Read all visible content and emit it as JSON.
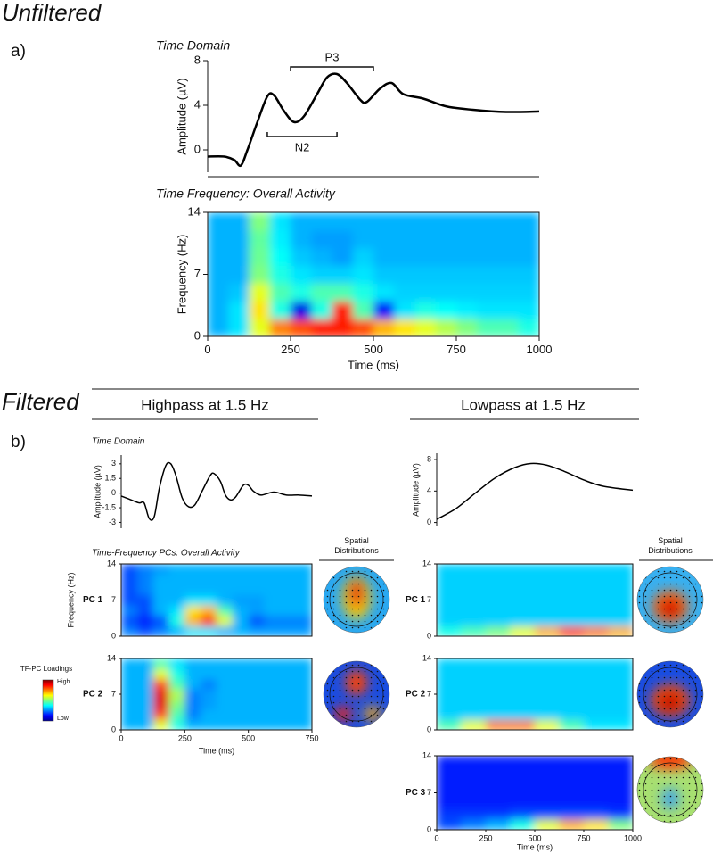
{
  "headings": {
    "unfiltered": "Unfiltered",
    "a": "a)",
    "filtered": "Filtered",
    "b": "b)",
    "highpass": "Highpass at 1.5 Hz",
    "lowpass": "Lowpass at 1.5 Hz"
  },
  "spatial_labels": [
    "Spatial Distributions",
    "Spatial Distributions"
  ],
  "colorbar": {
    "title": "TF-PC Loadings",
    "high": "High",
    "low": "Low"
  },
  "chart_data": [
    {
      "type": "line",
      "title": "Time Domain",
      "ylabel": "Amplitude (µV)",
      "color": "#000000",
      "x": [
        0,
        50,
        80,
        100,
        120,
        150,
        180,
        200,
        230,
        260,
        290,
        330,
        360,
        390,
        420,
        460,
        480,
        520,
        555,
        590,
        650,
        720,
        800,
        900,
        1000
      ],
      "values": [
        -0.6,
        -0.6,
        -0.9,
        -1.4,
        0,
        2.5,
        4.8,
        4.9,
        3.5,
        2.5,
        3,
        5,
        6.5,
        6.8,
        6,
        4.5,
        4.3,
        5.5,
        6,
        5,
        4.6,
        3.9,
        3.6,
        3.4,
        3.45
      ],
      "xlim": [
        0,
        1000
      ],
      "ylim": [
        -2,
        8
      ],
      "yticks": [
        0,
        4,
        8
      ],
      "annotations": [
        {
          "text": "P3",
          "x": [
            250,
            500
          ]
        },
        {
          "text": "N2",
          "x": [
            180,
            390
          ]
        }
      ]
    },
    {
      "type": "heatmap",
      "title": "Time Frequency: Overall Activity",
      "xlabel": "Time (ms)",
      "ylabel": "Frequency (Hz)",
      "colormap": "jet",
      "xlim": [
        0,
        1000
      ],
      "ylim": [
        0,
        14
      ],
      "zlim": [
        0,
        1
      ],
      "xticks": [
        0,
        250,
        500,
        750,
        1000
      ],
      "yticks": [
        0,
        7,
        14
      ],
      "values": [
        [
          0.3,
          0.35,
          0.6,
          0.75,
          0.8,
          0.85,
          0.85,
          0.8,
          0.7,
          0.65,
          0.6,
          0.55,
          0.5,
          0.45,
          0.45,
          0.4
        ],
        [
          0.3,
          0.35,
          0.65,
          0.4,
          0.1,
          0.4,
          0.85,
          0.45,
          0.12,
          0.35,
          0.4,
          0.38,
          0.36,
          0.35,
          0.35,
          0.35
        ],
        [
          0.3,
          0.32,
          0.6,
          0.45,
          0.4,
          0.45,
          0.45,
          0.4,
          0.35,
          0.33,
          0.33,
          0.33,
          0.33,
          0.33,
          0.33,
          0.33
        ],
        [
          0.3,
          0.3,
          0.5,
          0.4,
          0.35,
          0.33,
          0.33,
          0.35,
          0.32,
          0.32,
          0.32,
          0.32,
          0.32,
          0.32,
          0.32,
          0.32
        ],
        [
          0.3,
          0.3,
          0.48,
          0.38,
          0.32,
          0.3,
          0.28,
          0.33,
          0.3,
          0.3,
          0.3,
          0.3,
          0.3,
          0.3,
          0.3,
          0.3
        ],
        [
          0.3,
          0.3,
          0.47,
          0.36,
          0.3,
          0.28,
          0.28,
          0.3,
          0.3,
          0.3,
          0.3,
          0.3,
          0.3,
          0.3,
          0.3,
          0.3
        ],
        [
          0.3,
          0.3,
          0.5,
          0.35,
          0.3,
          0.3,
          0.3,
          0.3,
          0.3,
          0.3,
          0.3,
          0.3,
          0.3,
          0.3,
          0.3,
          0.3
        ]
      ]
    },
    {
      "type": "line",
      "title": "Time Domain",
      "ylabel": "Amplitude (µV)",
      "color": "#000000",
      "x": [
        0,
        30,
        70,
        90,
        110,
        130,
        150,
        175,
        195,
        215,
        240,
        265,
        290,
        320,
        350,
        365,
        390,
        410,
        430,
        450,
        480,
        500,
        520,
        550,
        600,
        650,
        700,
        750
      ],
      "values": [
        -0.3,
        -0.6,
        -1,
        -1,
        -2.6,
        -2.4,
        0.5,
        2.8,
        3,
        1.8,
        -0.5,
        -1.4,
        -1.2,
        0.3,
        1.8,
        2,
        1.2,
        -0.2,
        -0.7,
        -0.4,
        0.8,
        0.8,
        0.2,
        -0.2,
        0.1,
        -0.2,
        -0.2,
        -0.3
      ],
      "xlim": [
        0,
        750
      ],
      "ylim": [
        -3.6,
        3.9
      ],
      "yticks": [
        3,
        1.5,
        0,
        -1.5,
        -3
      ]
    },
    {
      "type": "line",
      "ylabel": "Amplitude (µV)",
      "color": "#000000",
      "x": [
        0,
        100,
        200,
        300,
        400,
        480,
        560,
        650,
        750,
        850,
        1000
      ],
      "values": [
        0.4,
        1.8,
        3.8,
        5.7,
        7,
        7.5,
        7.3,
        6.5,
        5.4,
        4.6,
        4.1
      ],
      "xlim": [
        0,
        1000
      ],
      "ylim": [
        -0.5,
        8.8
      ],
      "yticks": [
        0,
        4,
        8
      ]
    },
    {
      "type": "heatmap",
      "title": "Time-Frequency PCs: Overall Activity",
      "ylabel": "Frequency (Hz)",
      "panel": "PC 1",
      "colormap": "jet",
      "xlim": [
        0,
        750
      ],
      "ylim": [
        0,
        14
      ],
      "zlim": [
        0,
        1
      ],
      "yticks": [
        0,
        7,
        14
      ],
      "values": [
        [
          0.25,
          0.2,
          0.25,
          0.3,
          0.35,
          0.35,
          0.3,
          0.3,
          0.28,
          0.28,
          0.28,
          0.28
        ],
        [
          0.2,
          0.15,
          0.2,
          0.4,
          0.7,
          0.85,
          0.6,
          0.3,
          0.2,
          0.25,
          0.25,
          0.25
        ],
        [
          0.25,
          0.2,
          0.3,
          0.35,
          0.65,
          0.7,
          0.45,
          0.3,
          0.28,
          0.3,
          0.3,
          0.3
        ],
        [
          0.2,
          0.2,
          0.3,
          0.3,
          0.35,
          0.35,
          0.3,
          0.28,
          0.28,
          0.3,
          0.3,
          0.3
        ],
        [
          0.2,
          0.25,
          0.3,
          0.3,
          0.3,
          0.3,
          0.3,
          0.3,
          0.3,
          0.3,
          0.3,
          0.3
        ],
        [
          0.2,
          0.25,
          0.3,
          0.3,
          0.3,
          0.3,
          0.3,
          0.3,
          0.3,
          0.3,
          0.3,
          0.3
        ],
        [
          0.2,
          0.25,
          0.28,
          0.3,
          0.3,
          0.3,
          0.3,
          0.3,
          0.3,
          0.3,
          0.3,
          0.3
        ]
      ]
    },
    {
      "type": "heatmap",
      "xlabel": "Time (ms)",
      "panel": "PC 2",
      "colormap": "jet",
      "xlim": [
        0,
        750
      ],
      "ylim": [
        0,
        14
      ],
      "zlim": [
        0,
        1
      ],
      "xticks": [
        0,
        250,
        500,
        750
      ],
      "yticks": [
        0,
        7,
        14
      ],
      "values": [
        [
          0.3,
          0.3,
          0.6,
          0.4,
          0.3,
          0.3,
          0.3,
          0.3,
          0.3,
          0.3,
          0.3,
          0.3
        ],
        [
          0.3,
          0.3,
          0.8,
          0.45,
          0.25,
          0.3,
          0.3,
          0.3,
          0.3,
          0.3,
          0.3,
          0.3
        ],
        [
          0.3,
          0.3,
          0.9,
          0.5,
          0.25,
          0.28,
          0.3,
          0.3,
          0.3,
          0.3,
          0.3,
          0.3
        ],
        [
          0.3,
          0.3,
          0.9,
          0.55,
          0.25,
          0.28,
          0.3,
          0.3,
          0.3,
          0.3,
          0.3,
          0.3
        ],
        [
          0.3,
          0.3,
          0.8,
          0.45,
          0.3,
          0.25,
          0.3,
          0.3,
          0.3,
          0.3,
          0.3,
          0.3
        ],
        [
          0.3,
          0.3,
          0.6,
          0.4,
          0.3,
          0.3,
          0.3,
          0.3,
          0.3,
          0.3,
          0.3,
          0.3
        ],
        [
          0.3,
          0.3,
          0.45,
          0.35,
          0.3,
          0.3,
          0.3,
          0.3,
          0.3,
          0.3,
          0.3,
          0.3
        ]
      ]
    },
    {
      "type": "heatmap",
      "panel": "PC 1",
      "colormap": "jet",
      "xlim": [
        0,
        1000
      ],
      "ylim": [
        0,
        14
      ],
      "zlim": [
        0,
        1
      ],
      "yticks": [
        0,
        7,
        14
      ],
      "values": [
        [
          0.4,
          0.45,
          0.5,
          0.6,
          0.7,
          0.8,
          0.75,
          0.7
        ],
        [
          0.33,
          0.33,
          0.33,
          0.33,
          0.33,
          0.33,
          0.33,
          0.33
        ],
        [
          0.33,
          0.33,
          0.33,
          0.33,
          0.33,
          0.33,
          0.33,
          0.33
        ],
        [
          0.33,
          0.33,
          0.33,
          0.33,
          0.33,
          0.33,
          0.33,
          0.33
        ],
        [
          0.33,
          0.33,
          0.33,
          0.33,
          0.33,
          0.33,
          0.33,
          0.33
        ],
        [
          0.33,
          0.33,
          0.33,
          0.33,
          0.33,
          0.33,
          0.33,
          0.33
        ],
        [
          0.33,
          0.33,
          0.33,
          0.33,
          0.33,
          0.33,
          0.33,
          0.33
        ]
      ]
    },
    {
      "type": "heatmap",
      "panel": "PC 2",
      "colormap": "jet",
      "xlim": [
        0,
        1000
      ],
      "ylim": [
        0,
        14
      ],
      "zlim": [
        0,
        1
      ],
      "yticks": [
        0,
        7,
        14
      ],
      "values": [
        [
          0.45,
          0.6,
          0.75,
          0.75,
          0.6,
          0.45,
          0.35,
          0.35
        ],
        [
          0.33,
          0.33,
          0.33,
          0.33,
          0.33,
          0.33,
          0.33,
          0.33
        ],
        [
          0.33,
          0.33,
          0.33,
          0.33,
          0.33,
          0.33,
          0.33,
          0.33
        ],
        [
          0.33,
          0.33,
          0.33,
          0.33,
          0.33,
          0.33,
          0.33,
          0.33
        ],
        [
          0.33,
          0.33,
          0.33,
          0.33,
          0.33,
          0.33,
          0.33,
          0.33
        ],
        [
          0.33,
          0.33,
          0.33,
          0.33,
          0.33,
          0.33,
          0.33,
          0.33
        ],
        [
          0.33,
          0.33,
          0.33,
          0.33,
          0.33,
          0.33,
          0.33,
          0.33
        ]
      ]
    },
    {
      "type": "heatmap",
      "xlabel": "Time (ms)",
      "panel": "PC 3",
      "colormap": "jet",
      "xlim": [
        0,
        1000
      ],
      "ylim": [
        0,
        14
      ],
      "zlim": [
        0,
        1
      ],
      "xticks": [
        0,
        250,
        500,
        750,
        1000
      ],
      "yticks": [
        0,
        7,
        14
      ],
      "values": [
        [
          0.2,
          0.25,
          0.3,
          0.4,
          0.6,
          0.7,
          0.65,
          0.5
        ],
        [
          0.18,
          0.18,
          0.18,
          0.2,
          0.2,
          0.2,
          0.2,
          0.18
        ],
        [
          0.15,
          0.15,
          0.15,
          0.15,
          0.15,
          0.15,
          0.15,
          0.15
        ],
        [
          0.15,
          0.15,
          0.15,
          0.15,
          0.15,
          0.15,
          0.15,
          0.15
        ],
        [
          0.15,
          0.15,
          0.15,
          0.15,
          0.15,
          0.15,
          0.15,
          0.15
        ],
        [
          0.15,
          0.15,
          0.15,
          0.15,
          0.15,
          0.15,
          0.15,
          0.15
        ],
        [
          0.15,
          0.15,
          0.15,
          0.15,
          0.15,
          0.15,
          0.15,
          0.15
        ]
      ]
    }
  ]
}
